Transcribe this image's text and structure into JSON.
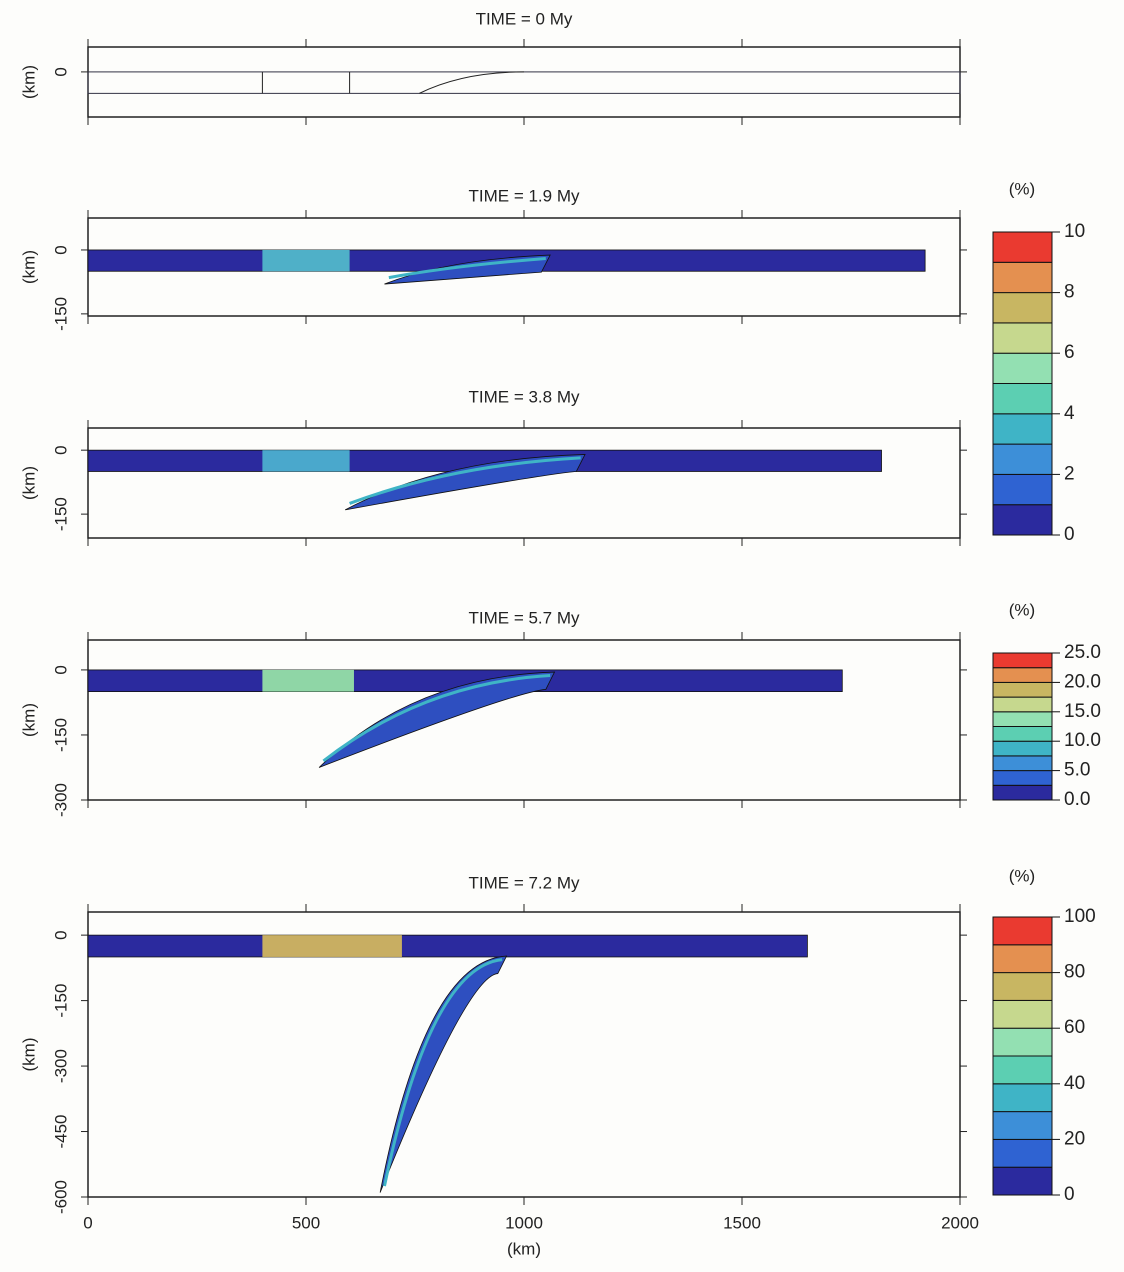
{
  "chart_data": [
    {
      "type": "field",
      "title": "TIME = 0 My",
      "ylabel": "(km)",
      "xlim": [
        0,
        2000
      ],
      "xticks": [
        0,
        500,
        1000,
        1500,
        2000
      ],
      "show_xticklabels": false,
      "ylim": [
        -105,
        58
      ],
      "yticks": [
        0
      ]
    },
    {
      "type": "field",
      "title": "TIME = 1.9 My",
      "ylabel": "(km)",
      "xlim": [
        0,
        2000
      ],
      "xticks": [
        0,
        500,
        1000,
        1500,
        2000
      ],
      "show_xticklabels": false,
      "ylim": [
        -155,
        75
      ],
      "yticks": [
        0,
        -150
      ]
    },
    {
      "type": "field",
      "title": "TIME = 3.8 My",
      "ylabel": "(km)",
      "xlim": [
        0,
        2000
      ],
      "xticks": [
        0,
        500,
        1000,
        1500,
        2000
      ],
      "show_xticklabels": false,
      "ylim": [
        -206,
        52
      ],
      "yticks": [
        0,
        -150
      ]
    },
    {
      "type": "field",
      "title": "TIME = 5.7 My",
      "ylabel": "(km)",
      "xlim": [
        0,
        2000
      ],
      "xticks": [
        0,
        500,
        1000,
        1500,
        2000
      ],
      "show_xticklabels": false,
      "ylim": [
        -300,
        69
      ],
      "yticks": [
        0,
        -150,
        -300
      ]
    },
    {
      "type": "field",
      "title": "TIME = 7.2 My",
      "ylabel": "(km)",
      "xlabel": "(km)",
      "xlim": [
        0,
        2000
      ],
      "xticks": [
        0,
        500,
        1000,
        1500,
        2000
      ],
      "show_xticklabels": true,
      "ylim": [
        -600,
        53
      ],
      "yticks": [
        0,
        -150,
        -300,
        -450,
        -600
      ]
    },
    {
      "type": "colorbar",
      "title": "(%)",
      "ylim": [
        0,
        10
      ],
      "yticks": [
        0,
        2,
        4,
        6,
        8,
        10
      ],
      "colors": [
        "#2b2a9e",
        "#2f63d2",
        "#3d8fd8",
        "#3fb4c6",
        "#5ccfb2",
        "#93e0b2",
        "#c6d88e",
        "#c8b662",
        "#e49050",
        "#ea3a30"
      ]
    },
    {
      "type": "colorbar",
      "title": "(%)",
      "ylim": [
        0,
        25
      ],
      "yticks": [
        {
          "value": 0,
          "label": "0.0"
        },
        {
          "value": 5,
          "label": "5.0"
        },
        {
          "value": 10,
          "label": "10.0"
        },
        {
          "value": 15,
          "label": "15.0"
        },
        {
          "value": 20,
          "label": "20.0"
        },
        {
          "value": 25,
          "label": "25.0"
        }
      ],
      "colors": [
        "#2b2a9e",
        "#2f63d2",
        "#3d8fd8",
        "#3fb4c6",
        "#5ccfb2",
        "#93e0b2",
        "#c6d88e",
        "#c8b662",
        "#e49050",
        "#ea3a30"
      ]
    },
    {
      "type": "colorbar",
      "title": "(%)",
      "ylim": [
        0,
        100
      ],
      "yticks": [
        0,
        20,
        40,
        60,
        80,
        100
      ],
      "colors": [
        "#2b2a9e",
        "#2f63d2",
        "#3d8fd8",
        "#3fb4c6",
        "#5ccfb2",
        "#93e0b2",
        "#c6d88e",
        "#c8b662",
        "#e49050",
        "#ea3a30"
      ]
    }
  ]
}
